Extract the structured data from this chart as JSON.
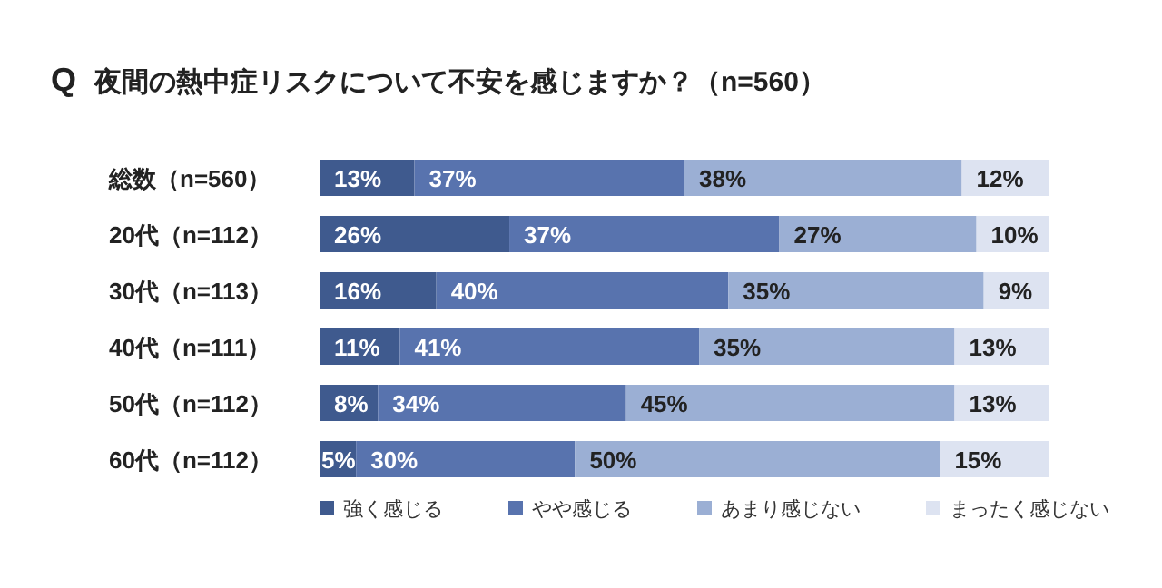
{
  "chart_data": {
    "type": "bar",
    "orientation": "horizontal",
    "stacked": true,
    "title": "夜間の熱中症リスクについて不安を感じますか？（n=560）",
    "annotations": [
      "Q"
    ],
    "categories": [
      "総数（n=560）",
      "20代（n=112）",
      "30代（n=113）",
      "40代（n=111）",
      "50代（n=112）",
      "60代（n=112）"
    ],
    "series": [
      {
        "name": "強く感じる",
        "color": "#3f5a8e",
        "values": [
          13,
          26,
          16,
          11,
          8,
          5
        ],
        "value_labels": [
          "13%",
          "26%",
          "16%",
          "11%",
          "8%",
          "5%"
        ]
      },
      {
        "name": "やや感じる",
        "color": "#5873ae",
        "values": [
          37,
          37,
          40,
          41,
          34,
          30
        ],
        "value_labels": [
          "37%",
          "37%",
          "40%",
          "41%",
          "34%",
          "30%"
        ]
      },
      {
        "name": "あまり感じない",
        "color": "#9bafd4",
        "values": [
          38,
          27,
          35,
          35,
          45,
          50
        ],
        "value_labels": [
          "38%",
          "27%",
          "35%",
          "35%",
          "45%",
          "50%"
        ]
      },
      {
        "name": "まったく感じない",
        "color": "#dde3f1",
        "values": [
          12,
          10,
          9,
          13,
          13,
          15
        ],
        "value_labels": [
          "12%",
          "10%",
          "9%",
          "13%",
          "13%",
          "15%"
        ]
      }
    ],
    "tick_labels": "y",
    "legend": "bottom"
  }
}
